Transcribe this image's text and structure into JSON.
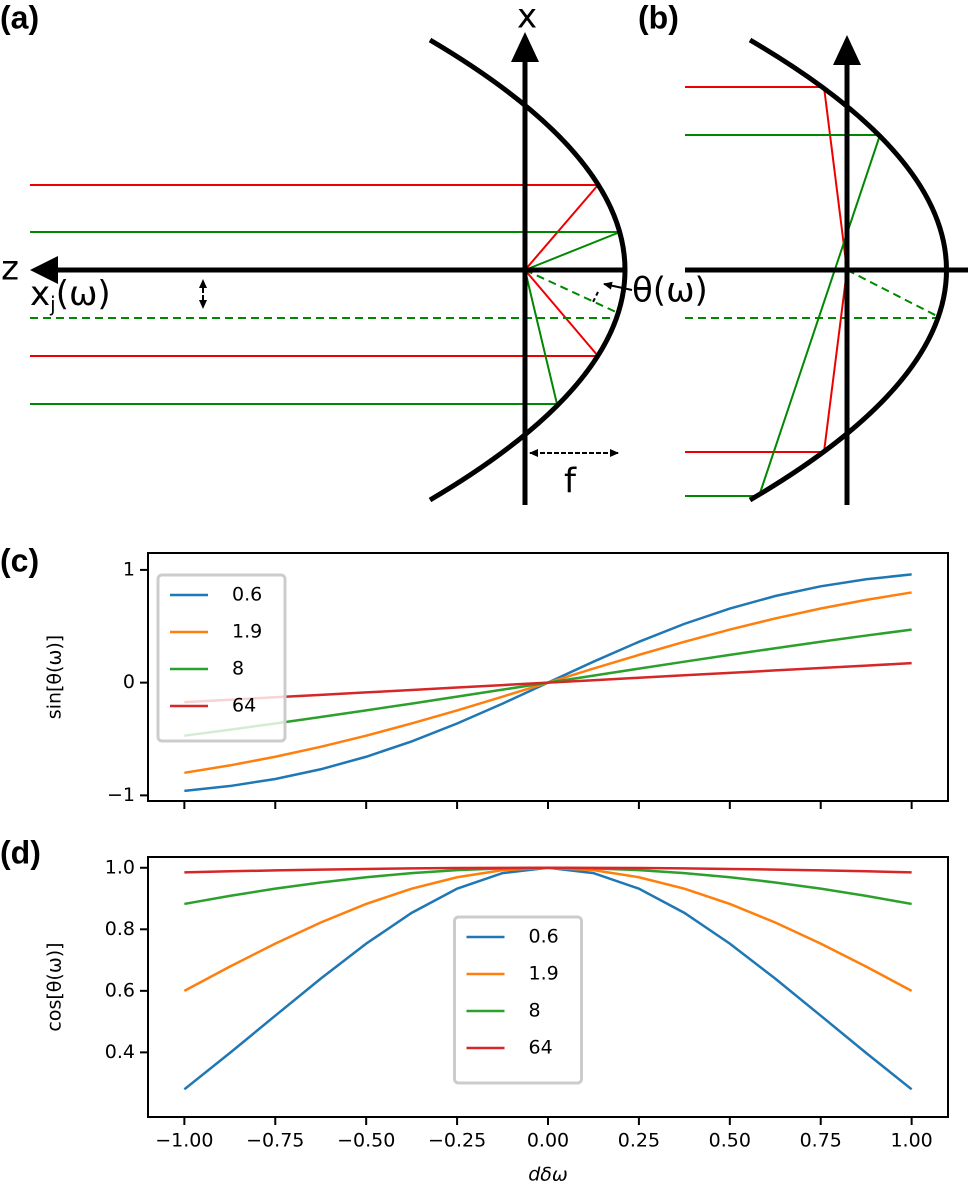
{
  "figure": {
    "panel_labels": [
      "(a)",
      "(b)",
      "(c)",
      "(d)"
    ],
    "diagram_labels": {
      "x_axis": "x",
      "z_axis": "z",
      "xj_base": "x",
      "xj_sub": "j",
      "xj_arg": "(ω)",
      "theta": "θ(ω)",
      "focal": "f"
    }
  },
  "chart_data": [
    {
      "type": "line",
      "ylabel": "sin[θ(ω)]",
      "x": [
        -1,
        -0.875,
        -0.75,
        -0.625,
        -0.5,
        -0.375,
        -0.25,
        -0.125,
        0,
        0.125,
        0.25,
        0.375,
        0.5,
        0.625,
        0.75,
        0.875,
        1
      ],
      "series": [
        {
          "name": "0.6",
          "color": "#1f77b4",
          "values": [
            -0.96,
            -0.9174,
            -0.8546,
            -0.7686,
            -0.6575,
            -0.5213,
            -0.3623,
            -0.1859,
            0,
            0.1859,
            0.3623,
            0.5213,
            0.6575,
            0.7686,
            0.8546,
            0.9174,
            0.96
          ]
        },
        {
          "name": "1.9",
          "color": "#ff7f0e",
          "values": [
            -0.8,
            -0.7344,
            -0.6575,
            -0.5694,
            -0.4706,
            -0.3623,
            -0.2462,
            -0.1245,
            0,
            0.1245,
            0.2462,
            0.3623,
            0.4706,
            0.5694,
            0.6575,
            0.7344,
            0.8
          ]
        },
        {
          "name": "8",
          "color": "#2ca02c",
          "values": [
            -0.4706,
            -0.4175,
            -0.3623,
            -0.3051,
            -0.2462,
            -0.1859,
            -0.1245,
            -0.0624,
            0,
            0.0624,
            0.1245,
            0.1859,
            0.2462,
            0.3051,
            0.3623,
            0.4175,
            0.4706
          ]
        },
        {
          "name": "64",
          "color": "#d62728",
          "values": [
            -0.1727,
            -0.1514,
            -0.1299,
            -0.1084,
            -0.0869,
            -0.0652,
            -0.0435,
            -0.0217,
            0,
            0.0217,
            0.0435,
            0.0652,
            0.0869,
            0.1084,
            0.1299,
            0.1514,
            0.1727
          ]
        }
      ],
      "xlim": [
        -1.1,
        1.1
      ],
      "ylim": [
        -1.05,
        1.15
      ],
      "xticks": [
        -1,
        -0.75,
        -0.5,
        -0.25,
        0,
        0.25,
        0.5,
        0.75,
        1
      ],
      "show_xtick_labels": false,
      "yticks": [
        {
          "value": -1,
          "label": "−1"
        },
        0,
        1
      ],
      "legend": "upper left"
    },
    {
      "type": "line",
      "ylabel": "cos[θ(ω)]",
      "xlabel": "dδω",
      "x": [
        -1,
        -0.875,
        -0.75,
        -0.625,
        -0.5,
        -0.375,
        -0.25,
        -0.125,
        0,
        0.125,
        0.25,
        0.375,
        0.5,
        0.625,
        0.75,
        0.875,
        1
      ],
      "series": [
        {
          "name": "0.6",
          "color": "#1f77b4",
          "values": [
            0.28,
            0.398,
            0.5193,
            0.6397,
            0.7534,
            0.8534,
            0.9321,
            0.9826,
            1,
            0.9826,
            0.9321,
            0.8534,
            0.7534,
            0.6397,
            0.5193,
            0.398,
            0.28
          ]
        },
        {
          "name": "1.9",
          "color": "#ff7f0e",
          "values": [
            0.6,
            0.6787,
            0.7534,
            0.8221,
            0.8824,
            0.9321,
            0.9692,
            0.9922,
            1,
            0.9922,
            0.9692,
            0.9321,
            0.8824,
            0.8221,
            0.7534,
            0.6787,
            0.6
          ]
        },
        {
          "name": "8",
          "color": "#2ca02c",
          "values": [
            0.8824,
            0.9087,
            0.9321,
            0.9523,
            0.9692,
            0.9826,
            0.9922,
            0.998,
            1,
            0.998,
            0.9922,
            0.9826,
            0.9692,
            0.9523,
            0.9321,
            0.9087,
            0.8824
          ]
        },
        {
          "name": "64",
          "color": "#d62728",
          "values": [
            0.985,
            0.9885,
            0.9915,
            0.9941,
            0.9962,
            0.9979,
            0.9991,
            0.9998,
            1,
            0.9998,
            0.9991,
            0.9979,
            0.9962,
            0.9941,
            0.9915,
            0.9885,
            0.985
          ]
        }
      ],
      "xlim": [
        -1.1,
        1.1
      ],
      "ylim": [
        0.19,
        1.035
      ],
      "xticks": [
        {
          "value": -1,
          "label": "−1.00"
        },
        {
          "value": -0.75,
          "label": "−0.75"
        },
        {
          "value": -0.5,
          "label": "−0.50"
        },
        {
          "value": -0.25,
          "label": "−0.25"
        },
        {
          "value": 0,
          "label": "0.00"
        },
        0.25,
        {
          "value": 0.5,
          "label": "0.50"
        },
        0.75,
        {
          "value": 1,
          "label": "1.00"
        }
      ],
      "show_xtick_labels": true,
      "yticks": [
        0.4,
        0.6,
        0.8,
        {
          "value": 1,
          "label": "1.0"
        }
      ],
      "legend": "lower center"
    }
  ]
}
